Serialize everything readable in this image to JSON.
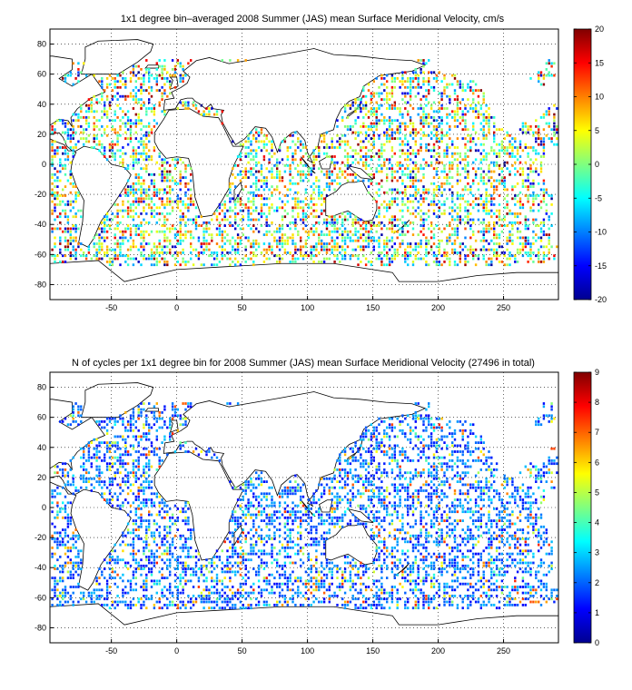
{
  "chart_data": [
    {
      "type": "heatmap",
      "title": "1x1 degree bin–averaged 2008 Summer (JAS) mean Surface Meridional Velocity, cm/s",
      "xlabel": "",
      "ylabel": "",
      "xlim": [
        -97,
        292
      ],
      "ylim": [
        -90,
        90
      ],
      "x_ticks": [
        -50,
        0,
        50,
        100,
        150,
        200,
        250
      ],
      "y_ticks": [
        -80,
        -60,
        -40,
        -20,
        0,
        20,
        40,
        60,
        80
      ],
      "grid": "dotted",
      "colorbar": {
        "min": -20,
        "max": 20,
        "ticks": [
          20,
          15,
          10,
          5,
          0,
          -5,
          -10,
          -15,
          -20
        ],
        "colormap": "jet"
      }
    },
    {
      "type": "heatmap",
      "title": "N of cycles per 1x1 degree bin for 2008 Summer (JAS) mean Surface Meridional Velocity (27496 in total)",
      "xlabel": "",
      "ylabel": "",
      "xlim": [
        -97,
        292
      ],
      "ylim": [
        -90,
        90
      ],
      "x_ticks": [
        -50,
        0,
        50,
        100,
        150,
        200,
        250
      ],
      "y_ticks": [
        -80,
        -60,
        -40,
        -20,
        0,
        20,
        40,
        60,
        80
      ],
      "grid": "dotted",
      "colorbar": {
        "min": 0,
        "max": 9,
        "ticks": [
          9,
          8,
          7,
          6,
          5,
          4,
          3,
          2,
          1,
          0
        ],
        "colormap": "jet"
      }
    }
  ]
}
